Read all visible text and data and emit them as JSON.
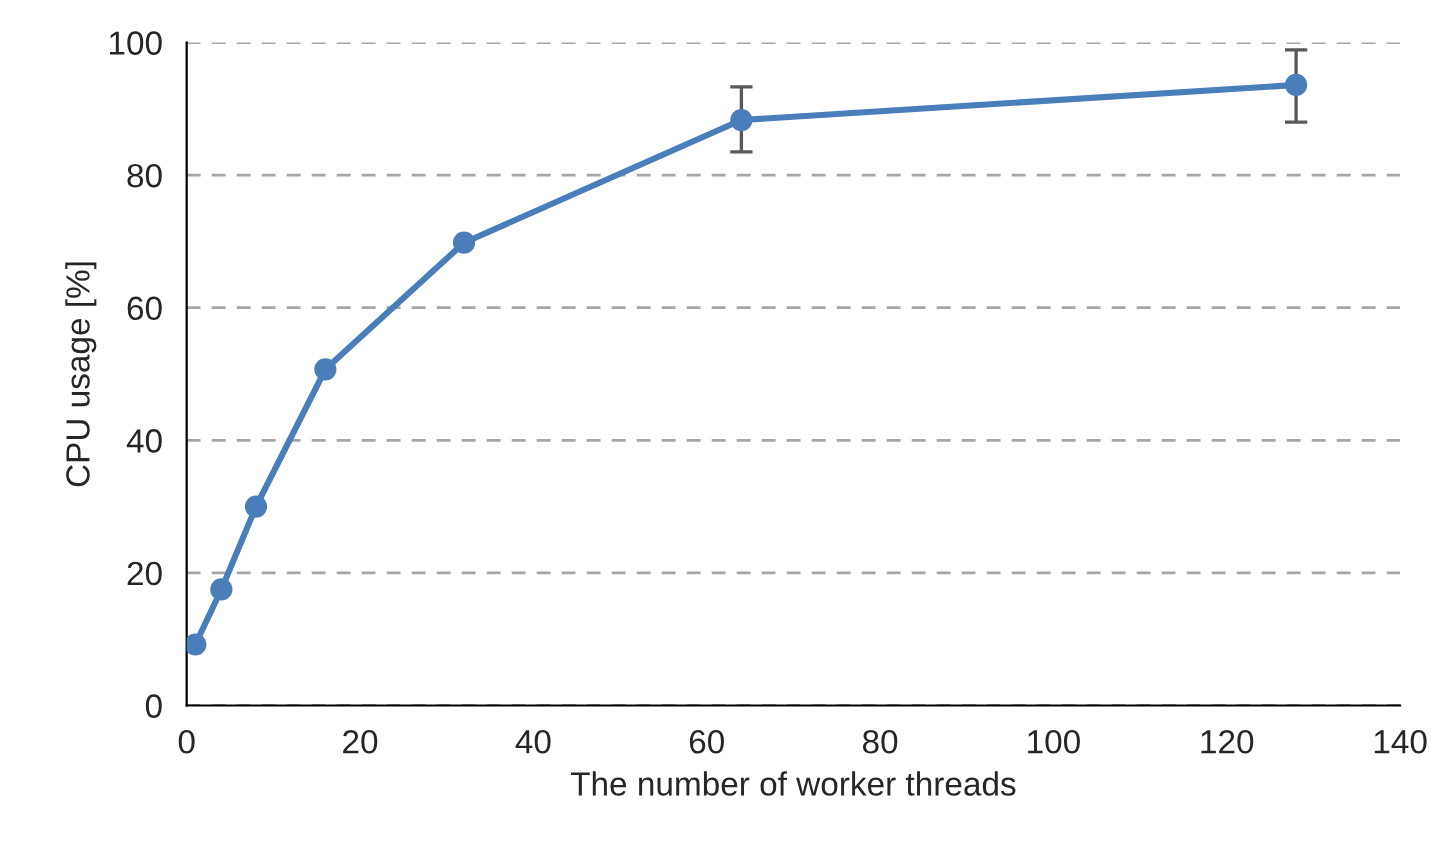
{
  "chart_data": {
    "type": "line",
    "xlabel": "The number of worker threads",
    "ylabel": "CPU usage [%]",
    "x": [
      1,
      4,
      8,
      16,
      32,
      64,
      128
    ],
    "series": [
      {
        "color": "#4a7ebb",
        "values": [
          9.2,
          17.5,
          30.0,
          50.7,
          69.8,
          88.3,
          93.6
        ],
        "errors": [
          null,
          null,
          null,
          null,
          null,
          [
            83.5,
            93.3
          ],
          [
            88.0,
            98.9
          ]
        ]
      }
    ],
    "xlim": [
      0,
      140
    ],
    "xticks": [
      0,
      20,
      40,
      60,
      80,
      100,
      120,
      140
    ],
    "ylim": [
      0,
      100
    ],
    "yticks": [
      0,
      20,
      40,
      60,
      80,
      100
    ],
    "grid": "y",
    "marker": "circle",
    "line_style": "solid"
  }
}
